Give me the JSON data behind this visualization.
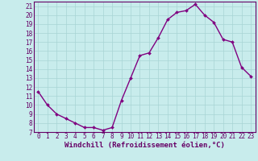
{
  "hours": [
    0,
    1,
    2,
    3,
    4,
    5,
    6,
    7,
    8,
    9,
    10,
    11,
    12,
    13,
    14,
    15,
    16,
    17,
    18,
    19,
    20,
    21,
    22,
    23
  ],
  "values": [
    11.5,
    10.0,
    9.0,
    8.5,
    8.0,
    7.5,
    7.5,
    7.2,
    7.5,
    10.5,
    13.0,
    15.5,
    15.8,
    17.5,
    19.5,
    20.3,
    20.5,
    21.2,
    20.0,
    19.2,
    17.3,
    17.0,
    14.2,
    13.2
  ],
  "line_color": "#800080",
  "marker": "D",
  "marker_size": 2.0,
  "line_width": 1.0,
  "bg_color": "#c8ecec",
  "grid_color": "#a8d4d4",
  "xlabel": "Windchill (Refroidissement éolien,°C)",
  "xlim": [
    -0.5,
    23.5
  ],
  "ylim": [
    7,
    21.5
  ],
  "yticks": [
    7,
    8,
    9,
    10,
    11,
    12,
    13,
    14,
    15,
    16,
    17,
    18,
    19,
    20,
    21
  ],
  "xticks": [
    0,
    1,
    2,
    3,
    4,
    5,
    6,
    7,
    8,
    9,
    10,
    11,
    12,
    13,
    14,
    15,
    16,
    17,
    18,
    19,
    20,
    21,
    22,
    23
  ],
  "tick_label_color": "#660066",
  "tick_label_size": 5.5,
  "xlabel_size": 6.5,
  "xlabel_color": "#660066",
  "axis_color": "#660066",
  "spine_color": "#660066"
}
